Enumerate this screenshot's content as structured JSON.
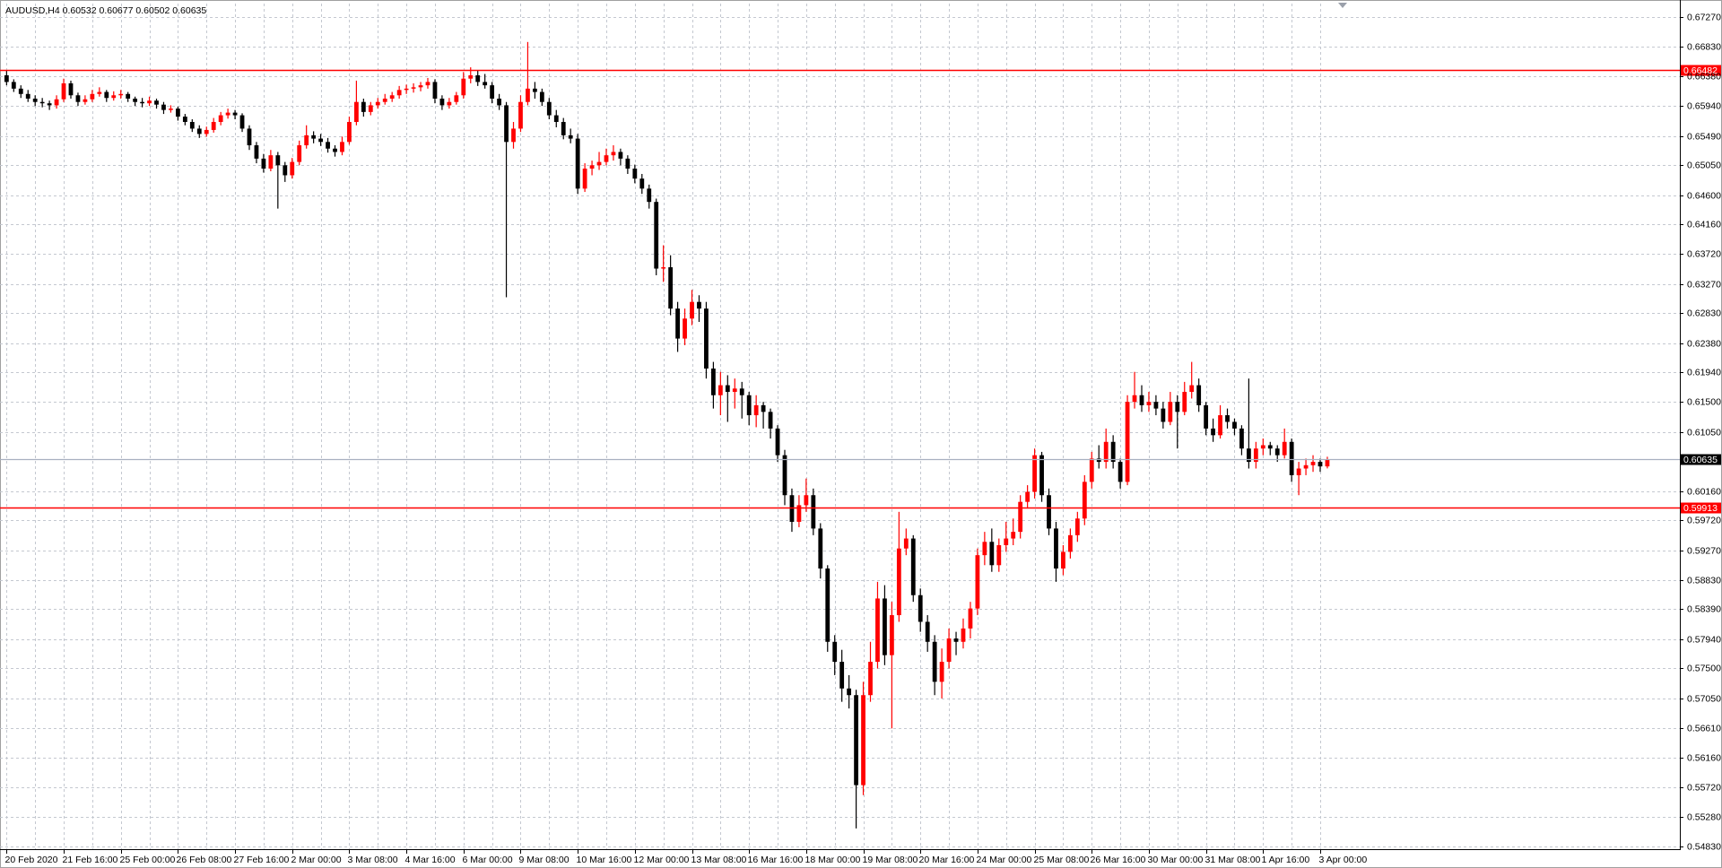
{
  "chart_data": {
    "type": "candlestick",
    "title": "AUDUSD,H4",
    "categories": [
      "20 Feb 2020",
      null,
      null,
      null,
      null,
      null,
      null,
      null,
      "21 Feb 16:00",
      null,
      null,
      null,
      null,
      null,
      null,
      null,
      "25 Feb 00:00",
      null,
      null,
      null,
      null,
      null,
      null,
      null,
      "26 Feb 08:00",
      null,
      null,
      null,
      null,
      null,
      null,
      null,
      "27 Feb 16:00",
      null,
      null,
      null,
      null,
      null,
      null,
      null,
      "2 Mar 00:00",
      null,
      null,
      null,
      null,
      null,
      null,
      null,
      "3 Mar 08:00",
      null,
      null,
      null,
      null,
      null,
      null,
      null,
      "4 Mar 16:00",
      null,
      null,
      null,
      null,
      null,
      null,
      null,
      "6 Mar 00:00",
      null,
      null,
      null,
      null,
      null,
      null,
      null,
      "9 Mar 08:00",
      null,
      null,
      null,
      null,
      null,
      null,
      null,
      "10 Mar 16:00",
      null,
      null,
      null,
      null,
      null,
      null,
      null,
      "12 Mar 00:00",
      null,
      null,
      null,
      null,
      null,
      null,
      null,
      "13 Mar 08:00",
      null,
      null,
      null,
      null,
      null,
      null,
      null,
      "16 Mar 16:00",
      null,
      null,
      null,
      null,
      null,
      null,
      null,
      "18 Mar 00:00",
      null,
      null,
      null,
      null,
      null,
      null,
      null,
      "19 Mar 08:00",
      null,
      null,
      null,
      null,
      null,
      null,
      null,
      "20 Mar 16:00",
      null,
      null,
      null,
      null,
      null,
      null,
      null,
      "24 Mar 00:00",
      null,
      null,
      null,
      null,
      null,
      null,
      null,
      "25 Mar 08:00",
      null,
      null,
      null,
      null,
      null,
      null,
      null,
      "26 Mar 16:00",
      null,
      null,
      null,
      null,
      null,
      null,
      null,
      "30 Mar 00:00",
      null,
      null,
      null,
      null,
      null,
      null,
      null,
      "31 Mar 08:00",
      null,
      null,
      null,
      null,
      null,
      null,
      null,
      "1 Apr 16:00",
      null,
      null,
      null,
      null,
      null,
      null,
      null,
      "3 Apr 00:00",
      null
    ],
    "candles": [
      [
        0.664,
        0.6648,
        0.6625,
        0.663
      ],
      [
        0.663,
        0.6634,
        0.6615,
        0.662
      ],
      [
        0.662,
        0.6625,
        0.6606,
        0.6612
      ],
      [
        0.6612,
        0.6618,
        0.66,
        0.6605
      ],
      [
        0.6605,
        0.661,
        0.6594,
        0.66
      ],
      [
        0.66,
        0.6606,
        0.6592,
        0.6598
      ],
      [
        0.6598,
        0.6602,
        0.6588,
        0.6595
      ],
      [
        0.6595,
        0.661,
        0.659,
        0.6604
      ],
      [
        0.6604,
        0.6635,
        0.66,
        0.6628
      ],
      [
        0.6628,
        0.6632,
        0.6605,
        0.661
      ],
      [
        0.661,
        0.6614,
        0.6594,
        0.66
      ],
      [
        0.66,
        0.661,
        0.6596,
        0.6604
      ],
      [
        0.6604,
        0.6618,
        0.66,
        0.6612
      ],
      [
        0.6612,
        0.6622,
        0.6608,
        0.6615
      ],
      [
        0.6615,
        0.6618,
        0.66,
        0.6606
      ],
      [
        0.6606,
        0.6616,
        0.6602,
        0.661
      ],
      [
        0.661,
        0.6618,
        0.6605,
        0.6612
      ],
      [
        0.6612,
        0.6615,
        0.66,
        0.6605
      ],
      [
        0.6605,
        0.6608,
        0.6594,
        0.66
      ],
      [
        0.66,
        0.6606,
        0.6592,
        0.6598
      ],
      [
        0.6598,
        0.6608,
        0.6594,
        0.6602
      ],
      [
        0.6602,
        0.6605,
        0.659,
        0.6596
      ],
      [
        0.6596,
        0.66,
        0.6582,
        0.6588
      ],
      [
        0.6588,
        0.6595,
        0.6584,
        0.659
      ],
      [
        0.659,
        0.6593,
        0.6572,
        0.6578
      ],
      [
        0.6578,
        0.6582,
        0.6565,
        0.657
      ],
      [
        0.657,
        0.6574,
        0.6555,
        0.656
      ],
      [
        0.656,
        0.6565,
        0.6546,
        0.6552
      ],
      [
        0.6552,
        0.6563,
        0.6548,
        0.6558
      ],
      [
        0.6558,
        0.6576,
        0.6554,
        0.657
      ],
      [
        0.657,
        0.6585,
        0.6565,
        0.658
      ],
      [
        0.658,
        0.659,
        0.6575,
        0.6584
      ],
      [
        0.6584,
        0.6588,
        0.6574,
        0.658
      ],
      [
        0.658,
        0.6583,
        0.6555,
        0.656
      ],
      [
        0.656,
        0.6565,
        0.6528,
        0.6535
      ],
      [
        0.6535,
        0.654,
        0.6508,
        0.6515
      ],
      [
        0.6515,
        0.6522,
        0.6494,
        0.65
      ],
      [
        0.65,
        0.6528,
        0.6496,
        0.652
      ],
      [
        0.652,
        0.6525,
        0.644,
        0.6505
      ],
      [
        0.6505,
        0.651,
        0.648,
        0.649
      ],
      [
        0.649,
        0.6516,
        0.6485,
        0.651
      ],
      [
        0.651,
        0.6542,
        0.6505,
        0.6535
      ],
      [
        0.6535,
        0.6565,
        0.653,
        0.655
      ],
      [
        0.655,
        0.6556,
        0.6538,
        0.6545
      ],
      [
        0.6545,
        0.6552,
        0.6534,
        0.654
      ],
      [
        0.654,
        0.6546,
        0.6524,
        0.653
      ],
      [
        0.653,
        0.6535,
        0.6518,
        0.6525
      ],
      [
        0.6525,
        0.6548,
        0.652,
        0.654
      ],
      [
        0.654,
        0.6578,
        0.6536,
        0.657
      ],
      [
        0.657,
        0.6632,
        0.6565,
        0.66
      ],
      [
        0.66,
        0.6605,
        0.6578,
        0.6585
      ],
      [
        0.6585,
        0.66,
        0.658,
        0.6595
      ],
      [
        0.6595,
        0.6606,
        0.659,
        0.66
      ],
      [
        0.66,
        0.6612,
        0.6596,
        0.6605
      ],
      [
        0.6605,
        0.6615,
        0.66,
        0.661
      ],
      [
        0.661,
        0.6624,
        0.6605,
        0.6618
      ],
      [
        0.6618,
        0.6626,
        0.6612,
        0.662
      ],
      [
        0.662,
        0.6628,
        0.6614,
        0.6622
      ],
      [
        0.6622,
        0.663,
        0.6616,
        0.6625
      ],
      [
        0.6625,
        0.6636,
        0.662,
        0.663
      ],
      [
        0.663,
        0.6634,
        0.6598,
        0.6605
      ],
      [
        0.6605,
        0.661,
        0.6588,
        0.6595
      ],
      [
        0.6595,
        0.6606,
        0.659,
        0.66
      ],
      [
        0.66,
        0.6615,
        0.6596,
        0.661
      ],
      [
        0.661,
        0.6645,
        0.6605,
        0.6635
      ],
      [
        0.6635,
        0.6652,
        0.6628,
        0.664
      ],
      [
        0.664,
        0.6648,
        0.6624,
        0.663
      ],
      [
        0.663,
        0.6642,
        0.662,
        0.6625
      ],
      [
        0.6625,
        0.663,
        0.6598,
        0.6605
      ],
      [
        0.6605,
        0.6612,
        0.6588,
        0.6595
      ],
      [
        0.6595,
        0.66,
        0.6307,
        0.654
      ],
      [
        0.654,
        0.657,
        0.653,
        0.656
      ],
      [
        0.656,
        0.661,
        0.6555,
        0.66
      ],
      [
        0.66,
        0.669,
        0.6595,
        0.662
      ],
      [
        0.662,
        0.663,
        0.6605,
        0.6615
      ],
      [
        0.6615,
        0.662,
        0.6594,
        0.66
      ],
      [
        0.66,
        0.6606,
        0.6574,
        0.658
      ],
      [
        0.658,
        0.6588,
        0.6562,
        0.657
      ],
      [
        0.657,
        0.6576,
        0.6544,
        0.655
      ],
      [
        0.655,
        0.656,
        0.6538,
        0.6545
      ],
      [
        0.6545,
        0.6552,
        0.6462,
        0.647
      ],
      [
        0.647,
        0.6508,
        0.6465,
        0.65
      ],
      [
        0.65,
        0.6512,
        0.649,
        0.6505
      ],
      [
        0.6505,
        0.6525,
        0.6498,
        0.651
      ],
      [
        0.651,
        0.653,
        0.6505,
        0.652
      ],
      [
        0.652,
        0.6535,
        0.6512,
        0.6525
      ],
      [
        0.6525,
        0.653,
        0.6505,
        0.6515
      ],
      [
        0.6515,
        0.652,
        0.6492,
        0.65
      ],
      [
        0.65,
        0.6506,
        0.6478,
        0.6485
      ],
      [
        0.6485,
        0.6492,
        0.6462,
        0.647
      ],
      [
        0.647,
        0.6476,
        0.644,
        0.645
      ],
      [
        0.645,
        0.6455,
        0.634,
        0.635
      ],
      [
        0.635,
        0.6385,
        0.633,
        0.6352
      ],
      [
        0.6352,
        0.637,
        0.628,
        0.629
      ],
      [
        0.629,
        0.63,
        0.6225,
        0.6245
      ],
      [
        0.6245,
        0.629,
        0.6235,
        0.6275
      ],
      [
        0.6275,
        0.6318,
        0.6265,
        0.63
      ],
      [
        0.63,
        0.631,
        0.627,
        0.629
      ],
      [
        0.629,
        0.63,
        0.6185,
        0.62
      ],
      [
        0.62,
        0.621,
        0.614,
        0.616
      ],
      [
        0.616,
        0.6195,
        0.613,
        0.6175
      ],
      [
        0.6175,
        0.619,
        0.612,
        0.6165
      ],
      [
        0.6165,
        0.6185,
        0.614,
        0.617
      ],
      [
        0.617,
        0.618,
        0.6125,
        0.616
      ],
      [
        0.616,
        0.6165,
        0.6115,
        0.613
      ],
      [
        0.613,
        0.616,
        0.6112,
        0.6145
      ],
      [
        0.6145,
        0.615,
        0.611,
        0.6135
      ],
      [
        0.6135,
        0.614,
        0.6095,
        0.611
      ],
      [
        0.611,
        0.6115,
        0.606,
        0.607
      ],
      [
        0.607,
        0.6078,
        0.5995,
        0.601
      ],
      [
        0.601,
        0.602,
        0.5955,
        0.597
      ],
      [
        0.597,
        0.601,
        0.5962,
        0.5995
      ],
      [
        0.5995,
        0.6035,
        0.5985,
        0.601
      ],
      [
        0.601,
        0.602,
        0.595,
        0.596
      ],
      [
        0.596,
        0.5968,
        0.5885,
        0.59
      ],
      [
        0.59,
        0.5905,
        0.5775,
        0.579
      ],
      [
        0.579,
        0.58,
        0.574,
        0.576
      ],
      [
        0.576,
        0.5778,
        0.57,
        0.572
      ],
      [
        0.572,
        0.574,
        0.569,
        0.571
      ],
      [
        0.571,
        0.5718,
        0.551,
        0.5575
      ],
      [
        0.5575,
        0.573,
        0.556,
        0.571
      ],
      [
        0.571,
        0.579,
        0.57,
        0.576
      ],
      [
        0.576,
        0.588,
        0.575,
        0.5855
      ],
      [
        0.5855,
        0.5875,
        0.5755,
        0.577
      ],
      [
        0.577,
        0.585,
        0.566,
        0.583
      ],
      [
        0.583,
        0.5985,
        0.582,
        0.593
      ],
      [
        0.593,
        0.596,
        0.592,
        0.5945
      ],
      [
        0.5945,
        0.595,
        0.585,
        0.586
      ],
      [
        0.586,
        0.587,
        0.5805,
        0.582
      ],
      [
        0.582,
        0.583,
        0.5775,
        0.579
      ],
      [
        0.579,
        0.58,
        0.571,
        0.573
      ],
      [
        0.573,
        0.578,
        0.5705,
        0.576
      ],
      [
        0.576,
        0.581,
        0.575,
        0.5795
      ],
      [
        0.5795,
        0.5805,
        0.577,
        0.579
      ],
      [
        0.579,
        0.5825,
        0.578,
        0.581
      ],
      [
        0.581,
        0.585,
        0.5795,
        0.584
      ],
      [
        0.584,
        0.593,
        0.583,
        0.592
      ],
      [
        0.592,
        0.5955,
        0.5905,
        0.594
      ],
      [
        0.594,
        0.596,
        0.5895,
        0.5905
      ],
      [
        0.5905,
        0.5945,
        0.5895,
        0.5935
      ],
      [
        0.5935,
        0.597,
        0.5925,
        0.5945
      ],
      [
        0.5945,
        0.5975,
        0.5935,
        0.5955
      ],
      [
        0.5955,
        0.601,
        0.5945,
        0.6
      ],
      [
        0.6,
        0.6025,
        0.599,
        0.6015
      ],
      [
        0.6015,
        0.608,
        0.6005,
        0.607
      ],
      [
        0.607,
        0.6075,
        0.6,
        0.601
      ],
      [
        0.601,
        0.602,
        0.595,
        0.596
      ],
      [
        0.596,
        0.597,
        0.588,
        0.59
      ],
      [
        0.59,
        0.5935,
        0.589,
        0.5925
      ],
      [
        0.5925,
        0.596,
        0.5915,
        0.595
      ],
      [
        0.595,
        0.5985,
        0.594,
        0.5975
      ],
      [
        0.5975,
        0.604,
        0.5965,
        0.603
      ],
      [
        0.603,
        0.6075,
        0.602,
        0.6065
      ],
      [
        0.6065,
        0.6085,
        0.605,
        0.606
      ],
      [
        0.606,
        0.611,
        0.605,
        0.609
      ],
      [
        0.609,
        0.61,
        0.605,
        0.606
      ],
      [
        0.606,
        0.6065,
        0.602,
        0.603
      ],
      [
        0.603,
        0.616,
        0.6025,
        0.615
      ],
      [
        0.615,
        0.6195,
        0.614,
        0.616
      ],
      [
        0.616,
        0.6175,
        0.6135,
        0.6145
      ],
      [
        0.6145,
        0.6165,
        0.6135,
        0.615
      ],
      [
        0.615,
        0.616,
        0.613,
        0.614
      ],
      [
        0.614,
        0.615,
        0.611,
        0.612
      ],
      [
        0.612,
        0.6165,
        0.6115,
        0.615
      ],
      [
        0.615,
        0.616,
        0.608,
        0.6135
      ],
      [
        0.6135,
        0.618,
        0.613,
        0.6165
      ],
      [
        0.6165,
        0.621,
        0.6155,
        0.6175
      ],
      [
        0.6175,
        0.6185,
        0.6135,
        0.6145
      ],
      [
        0.6145,
        0.615,
        0.61,
        0.611
      ],
      [
        0.611,
        0.6125,
        0.609,
        0.61
      ],
      [
        0.61,
        0.6145,
        0.6095,
        0.613
      ],
      [
        0.613,
        0.614,
        0.611,
        0.612
      ],
      [
        0.612,
        0.6125,
        0.61,
        0.611
      ],
      [
        0.611,
        0.6115,
        0.607,
        0.608
      ],
      [
        0.608,
        0.6185,
        0.605,
        0.606
      ],
      [
        0.606,
        0.609,
        0.605,
        0.608
      ],
      [
        0.608,
        0.6095,
        0.607,
        0.6085
      ],
      [
        0.6085,
        0.609,
        0.607,
        0.608
      ],
      [
        0.608,
        0.6085,
        0.606,
        0.607
      ],
      [
        0.607,
        0.611,
        0.6065,
        0.609
      ],
      [
        0.609,
        0.6095,
        0.603,
        0.604
      ],
      [
        0.604,
        0.606,
        0.601,
        0.605
      ],
      [
        0.605,
        0.6065,
        0.604,
        0.6055
      ],
      [
        0.6055,
        0.607,
        0.6045,
        0.606
      ],
      [
        0.606,
        0.6065,
        0.6045,
        0.60532
      ],
      [
        0.60532,
        0.60677,
        0.60502,
        0.60635
      ]
    ],
    "up_color": "#ff0000",
    "down_color": "#000000",
    "ylim": [
      0.54789,
      0.67476
    ],
    "yticks": [
      {
        "value": 0.6727,
        "label": "0.67270"
      },
      {
        "value": 0.6683,
        "label": "0.66830"
      },
      {
        "value": 0.6638,
        "label": "0.66380"
      },
      {
        "value": 0.6594,
        "label": "0.65940"
      },
      {
        "value": 0.6549,
        "label": "0.65490"
      },
      {
        "value": 0.6505,
        "label": "0.65050"
      },
      {
        "value": 0.646,
        "label": "0.64600"
      },
      {
        "value": 0.6416,
        "label": "0.64160"
      },
      {
        "value": 0.6372,
        "label": "0.63720"
      },
      {
        "value": 0.6327,
        "label": "0.63270"
      },
      {
        "value": 0.6283,
        "label": "0.62830"
      },
      {
        "value": 0.6238,
        "label": "0.62380"
      },
      {
        "value": 0.6194,
        "label": "0.61940"
      },
      {
        "value": 0.615,
        "label": "0.61500"
      },
      {
        "value": 0.6105,
        "label": "0.61050"
      },
      {
        "value": 0.6016,
        "label": "0.60160"
      },
      {
        "value": 0.5972,
        "label": "0.59720"
      },
      {
        "value": 0.5927,
        "label": "0.59270"
      },
      {
        "value": 0.5883,
        "label": "0.58830"
      },
      {
        "value": 0.5839,
        "label": "0.58390"
      },
      {
        "value": 0.5794,
        "label": "0.57940"
      },
      {
        "value": 0.575,
        "label": "0.57500"
      },
      {
        "value": 0.5705,
        "label": "0.57050"
      },
      {
        "value": 0.5661,
        "label": "0.56610"
      },
      {
        "value": 0.5616,
        "label": "0.56160"
      },
      {
        "value": 0.5572,
        "label": "0.55720"
      },
      {
        "value": 0.5528,
        "label": "0.55280"
      },
      {
        "value": 0.5483,
        "label": "0.54830"
      }
    ],
    "grid": true,
    "hlines": [
      {
        "value": 0.66482,
        "color": "#ff0000"
      },
      {
        "value": 0.59913,
        "color": "#ff0000"
      }
    ],
    "price_line_color": "#a8b0c0"
  }
}
